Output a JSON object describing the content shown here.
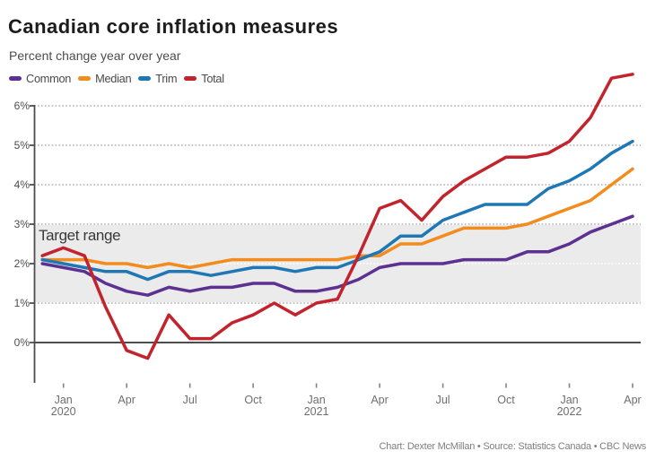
{
  "title": "Canadian core inflation measures",
  "subtitle": "Percent change year over year",
  "footer": "Chart: Dexter McMillan • Source: Statistics Canada • CBC News",
  "legend": [
    {
      "label": "Common",
      "color": "#5c3191"
    },
    {
      "label": "Median",
      "color": "#f28c1e"
    },
    {
      "label": "Trim",
      "color": "#1f78b4"
    },
    {
      "label": "Total",
      "color": "#c3232c"
    }
  ],
  "chart_data": {
    "type": "line",
    "title": "Canadian core inflation measures",
    "subtitle": "Percent change year over year",
    "x": [
      "Dec 2019",
      "Jan 2020",
      "Feb 2020",
      "Mar 2020",
      "Apr 2020",
      "May 2020",
      "Jun 2020",
      "Jul 2020",
      "Aug 2020",
      "Sep 2020",
      "Oct 2020",
      "Nov 2020",
      "Dec 2020",
      "Jan 2021",
      "Feb 2021",
      "Mar 2021",
      "Apr 2021",
      "May 2021",
      "Jun 2021",
      "Jul 2021",
      "Aug 2021",
      "Sep 2021",
      "Oct 2021",
      "Nov 2021",
      "Dec 2021",
      "Jan 2022",
      "Feb 2022",
      "Mar 2022",
      "Apr 2022"
    ],
    "series": [
      {
        "name": "Common",
        "color": "#5c3191",
        "values": [
          2.0,
          1.9,
          1.8,
          1.5,
          1.3,
          1.2,
          1.4,
          1.3,
          1.4,
          1.4,
          1.5,
          1.5,
          1.3,
          1.3,
          1.4,
          1.6,
          1.9,
          2.0,
          2.0,
          2.0,
          2.1,
          2.1,
          2.1,
          2.3,
          2.3,
          2.5,
          2.8,
          3.0,
          3.2
        ]
      },
      {
        "name": "Median",
        "color": "#f28c1e",
        "values": [
          2.1,
          2.1,
          2.1,
          2.0,
          2.0,
          1.9,
          2.0,
          1.9,
          2.0,
          2.1,
          2.1,
          2.1,
          2.1,
          2.1,
          2.1,
          2.2,
          2.2,
          2.5,
          2.5,
          2.7,
          2.9,
          2.9,
          2.9,
          3.0,
          3.2,
          3.4,
          3.6,
          4.0,
          4.4
        ]
      },
      {
        "name": "Trim",
        "color": "#1f78b4",
        "values": [
          2.1,
          2.0,
          1.9,
          1.8,
          1.8,
          1.6,
          1.8,
          1.8,
          1.7,
          1.8,
          1.9,
          1.9,
          1.8,
          1.9,
          1.9,
          2.1,
          2.3,
          2.7,
          2.7,
          3.1,
          3.3,
          3.5,
          3.5,
          3.5,
          3.9,
          4.1,
          4.4,
          4.8,
          5.1
        ]
      },
      {
        "name": "Total",
        "color": "#c3232c",
        "values": [
          2.2,
          2.4,
          2.2,
          0.9,
          -0.2,
          -0.4,
          0.7,
          0.1,
          0.1,
          0.5,
          0.7,
          1.0,
          0.7,
          1.0,
          1.1,
          2.2,
          3.4,
          3.6,
          3.1,
          3.7,
          4.1,
          4.4,
          4.7,
          4.7,
          4.8,
          5.1,
          5.7,
          6.7,
          6.8
        ]
      }
    ],
    "xlabel": "",
    "ylabel": "Percent change year over year",
    "ylim": [
      -1,
      7
    ],
    "yticks": [
      {
        "value": 0,
        "label": "0%"
      },
      {
        "value": 1,
        "label": "1%"
      },
      {
        "value": 2,
        "label": "2%"
      },
      {
        "value": 3,
        "label": "3%"
      },
      {
        "value": 4,
        "label": "4%"
      },
      {
        "value": 5,
        "label": "5%"
      },
      {
        "value": 6,
        "label": "6%"
      }
    ],
    "xticks": [
      {
        "index": 1,
        "label": "Jan",
        "year": "2020"
      },
      {
        "index": 4,
        "label": "Apr"
      },
      {
        "index": 7,
        "label": "Jul"
      },
      {
        "index": 10,
        "label": "Oct"
      },
      {
        "index": 13,
        "label": "Jan",
        "year": "2021"
      },
      {
        "index": 16,
        "label": "Apr"
      },
      {
        "index": 19,
        "label": "Jul"
      },
      {
        "index": 22,
        "label": "Oct"
      },
      {
        "index": 25,
        "label": "Jan",
        "year": "2022"
      },
      {
        "index": 28,
        "label": "Apr"
      }
    ],
    "annotations": {
      "target_range": {
        "label": "Target range",
        "from": 1,
        "to": 3
      }
    },
    "grid": "dotted",
    "legend_position": "top"
  },
  "colors": {
    "background": "#ffffff",
    "axis": "#4d4d4d",
    "zero_line": "#4d4d4d",
    "grid_above_band": "#aeb2b4",
    "grid_on_band": "#ffffff",
    "target_band": "#ebebeb",
    "x_tick": "#828282"
  }
}
